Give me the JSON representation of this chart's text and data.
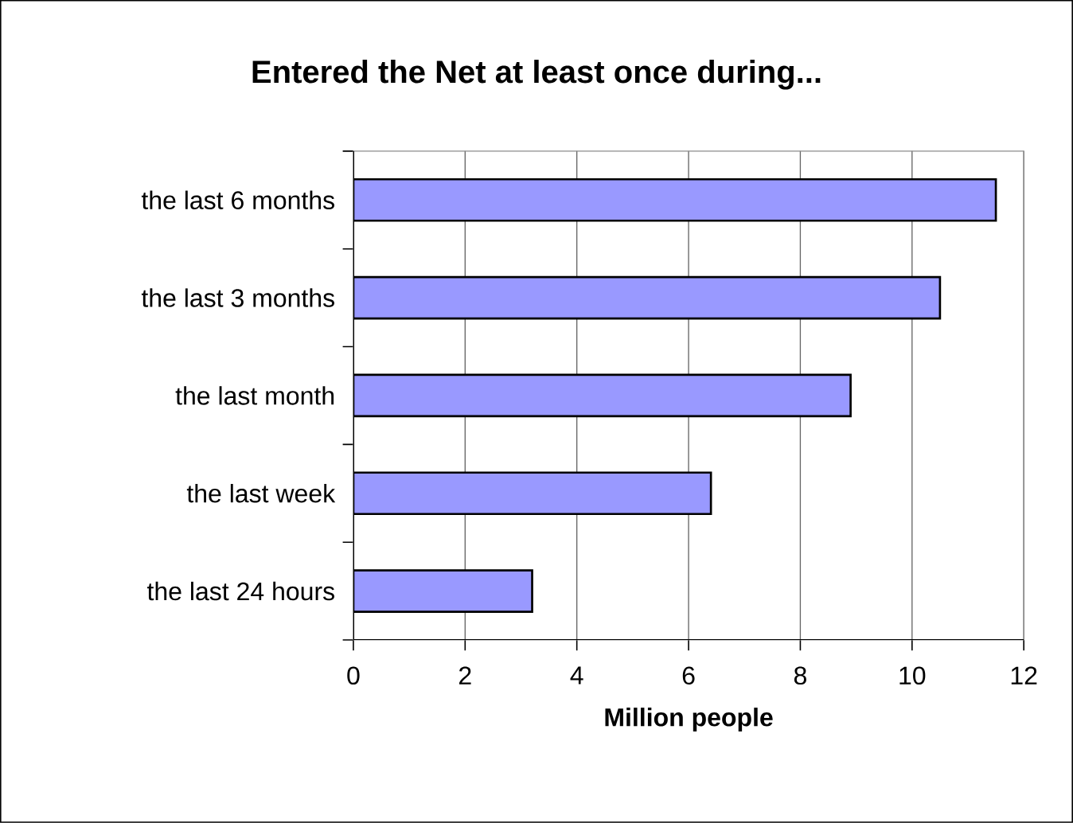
{
  "chart_data": {
    "type": "bar",
    "orientation": "horizontal",
    "title": "Entered the Net at least once during...",
    "xlabel": "Million people",
    "categories": [
      "the last 6 months",
      "the last 3 months",
      "the last month",
      "the last week",
      "the last 24 hours"
    ],
    "values": [
      11.5,
      10.5,
      8.9,
      6.4,
      3.2
    ],
    "color": "#9999ff",
    "xlim": [
      0,
      12
    ],
    "xticks": [
      0,
      2,
      4,
      6,
      8,
      10,
      12
    ],
    "grid": "x"
  }
}
